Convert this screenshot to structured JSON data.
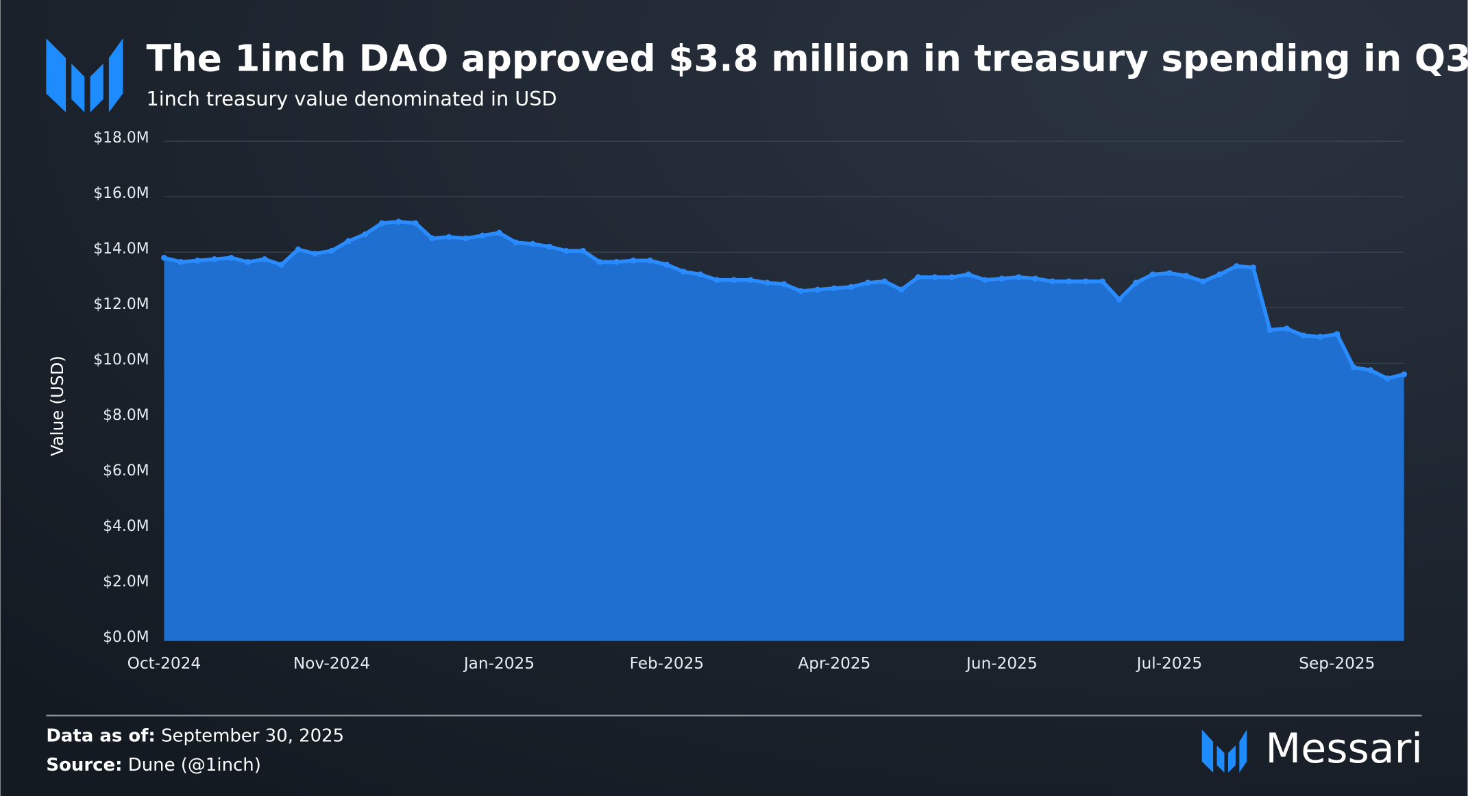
{
  "title": "The 1inch DAO approved $3.8 million in treasury spending in Q3",
  "subtitle": "1inch treasury value denominated in USD",
  "footer": {
    "data_as_of_label": "Data as of:",
    "data_as_of": "September 30, 2025",
    "source_label": "Source:",
    "source": "Dune (@1inch)"
  },
  "brand": "Messari",
  "chart_data": {
    "type": "area",
    "y_label": "Value (USD)",
    "color": "#1e6fd0",
    "line_color": "#2a8bff",
    "grid": true,
    "ylim": [
      0,
      18
    ],
    "yticks": [
      {
        "value": 0,
        "label": "$0.0M"
      },
      {
        "value": 2,
        "label": "$2.0M"
      },
      {
        "value": 4,
        "label": "$4.0M"
      },
      {
        "value": 6,
        "label": "$6.0M"
      },
      {
        "value": 8,
        "label": "$8.0M"
      },
      {
        "value": 10,
        "label": "$10.0M"
      },
      {
        "value": 12,
        "label": "$12.0M"
      },
      {
        "value": 14,
        "label": "$14.0M"
      },
      {
        "value": 16,
        "label": "$16.0M"
      },
      {
        "value": 18,
        "label": "$18.0M"
      }
    ],
    "categories": [
      "Oct-2024",
      null,
      null,
      null,
      null,
      null,
      null,
      null,
      null,
      null,
      "Nov-2024",
      null,
      null,
      null,
      null,
      null,
      null,
      null,
      null,
      null,
      "Jan-2025",
      null,
      null,
      null,
      null,
      null,
      null,
      null,
      null,
      null,
      "Feb-2025",
      null,
      null,
      null,
      null,
      null,
      null,
      null,
      null,
      null,
      "Apr-2025",
      null,
      null,
      null,
      null,
      null,
      null,
      null,
      null,
      null,
      "Jun-2025",
      null,
      null,
      null,
      null,
      null,
      null,
      null,
      null,
      null,
      "Jul-2025",
      null,
      null,
      null,
      null,
      null,
      null,
      null,
      null,
      null,
      "Sep-2025",
      null,
      null,
      null,
      null
    ],
    "values": [
      13.8,
      13.65,
      13.7,
      13.75,
      13.8,
      13.65,
      13.75,
      13.55,
      14.1,
      13.95,
      14.05,
      14.4,
      14.65,
      15.05,
      15.1,
      15.05,
      14.5,
      14.55,
      14.5,
      14.6,
      14.7,
      14.35,
      14.3,
      14.2,
      14.05,
      14.05,
      13.65,
      13.65,
      13.7,
      13.7,
      13.55,
      13.3,
      13.2,
      13.0,
      13.0,
      13.0,
      12.9,
      12.85,
      12.6,
      12.65,
      12.7,
      12.75,
      12.9,
      12.95,
      12.65,
      13.1,
      13.1,
      13.1,
      13.2,
      13.0,
      13.05,
      13.1,
      13.05,
      12.95,
      12.95,
      12.95,
      12.95,
      12.3,
      12.9,
      13.2,
      13.25,
      13.15,
      12.95,
      13.2,
      13.5,
      13.45,
      11.2,
      11.25,
      11.0,
      10.95,
      11.05,
      9.85,
      9.75,
      9.45,
      9.6
    ]
  }
}
